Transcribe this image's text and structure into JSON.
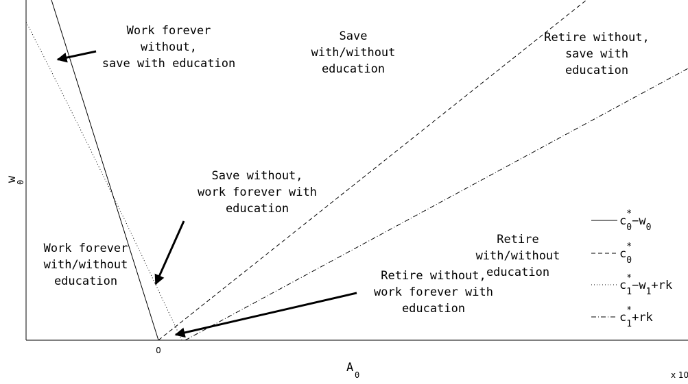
{
  "axes": {
    "y_label": {
      "base": "w",
      "sub": "0"
    },
    "x_label": {
      "base": "A",
      "sub": "0"
    },
    "x_tick": "0",
    "x_multiplier": "x 10"
  },
  "regions": [
    {
      "lines": [
        "Work forever",
        "without,",
        "save with education"
      ]
    },
    {
      "lines": [
        "Save",
        "with/without",
        "education"
      ]
    },
    {
      "lines": [
        "Retire without,",
        "save with",
        "education"
      ]
    },
    {
      "lines": [
        "Save without,",
        "work forever with",
        "education"
      ]
    },
    {
      "lines": [
        "Work forever",
        "with/without",
        "education"
      ]
    },
    {
      "lines": [
        "Retire",
        "with/without",
        "education"
      ]
    },
    {
      "lines": [
        "Retire without,",
        "work forever with",
        "education"
      ]
    }
  ],
  "legend": [
    {
      "parts": [
        "c",
        "*",
        "0",
        "−w",
        "0"
      ]
    },
    {
      "parts": [
        "c",
        "*",
        "0"
      ]
    },
    {
      "parts": [
        "c",
        "*",
        "1",
        "−w",
        "1",
        "+rk"
      ]
    },
    {
      "parts": [
        "c",
        "*",
        "1",
        "+rk"
      ]
    }
  ]
}
